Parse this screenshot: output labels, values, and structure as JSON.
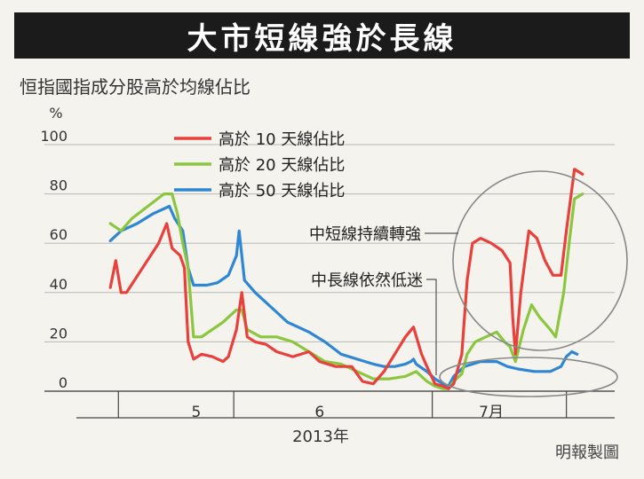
{
  "header": {
    "title": "大市短線強於長線",
    "subtitle": "恒指國指成分股高於均線佔比",
    "credit": "明報製圖"
  },
  "chart_data": {
    "type": "line",
    "ylabel": "%",
    "ylim": [
      0,
      100
    ],
    "yticks": [
      0,
      20,
      40,
      60,
      80,
      100
    ],
    "x_range": [
      0,
      100
    ],
    "x_ticks": [
      {
        "x": 22,
        "label": "5"
      },
      {
        "x": 45,
        "label": "6"
      },
      {
        "x": 77,
        "label": "7月"
      }
    ],
    "x_separators": [
      7.5,
      29,
      66,
      91
    ],
    "xlabel": "2013年",
    "grid": true,
    "legend_position": "top-center",
    "series": [
      {
        "name": "高於 10 天線佔比",
        "color": "#e8413c",
        "points": [
          [
            6,
            42
          ],
          [
            7,
            53
          ],
          [
            8,
            40
          ],
          [
            9,
            40
          ],
          [
            12,
            50
          ],
          [
            15,
            60
          ],
          [
            16.5,
            68
          ],
          [
            17.5,
            58
          ],
          [
            19,
            55
          ],
          [
            19.8,
            50
          ],
          [
            20.5,
            20
          ],
          [
            21.5,
            13
          ],
          [
            23,
            15
          ],
          [
            25,
            14
          ],
          [
            27,
            12
          ],
          [
            28,
            14
          ],
          [
            29.5,
            25
          ],
          [
            30.5,
            40
          ],
          [
            31.5,
            22
          ],
          [
            33,
            20
          ],
          [
            35,
            19
          ],
          [
            37,
            16
          ],
          [
            40,
            14
          ],
          [
            43,
            16
          ],
          [
            45,
            12
          ],
          [
            48,
            10
          ],
          [
            51,
            10
          ],
          [
            53,
            4
          ],
          [
            55,
            3
          ],
          [
            57,
            8
          ],
          [
            59,
            15
          ],
          [
            61,
            22
          ],
          [
            62.5,
            26
          ],
          [
            64,
            15
          ],
          [
            65,
            10
          ],
          [
            66.5,
            3
          ],
          [
            68,
            2
          ],
          [
            69,
            1
          ],
          [
            70,
            3
          ],
          [
            71.5,
            15
          ],
          [
            72.5,
            45
          ],
          [
            73.5,
            60
          ],
          [
            75,
            62
          ],
          [
            77,
            60
          ],
          [
            79,
            57
          ],
          [
            80.5,
            52
          ],
          [
            81,
            30
          ],
          [
            81.5,
            15
          ],
          [
            82.5,
            40
          ],
          [
            84,
            65
          ],
          [
            85.5,
            62
          ],
          [
            87,
            53
          ],
          [
            88.5,
            47
          ],
          [
            90,
            47
          ],
          [
            91,
            65
          ],
          [
            92.5,
            90
          ],
          [
            94,
            88
          ]
        ]
      },
      {
        "name": "高於 20 天線佔比",
        "color": "#8cc63f",
        "points": [
          [
            6,
            68
          ],
          [
            8,
            65
          ],
          [
            10,
            70
          ],
          [
            13,
            75
          ],
          [
            16,
            80
          ],
          [
            17.5,
            80
          ],
          [
            18.5,
            72
          ],
          [
            19.5,
            60
          ],
          [
            20.5,
            50
          ],
          [
            21.5,
            22
          ],
          [
            23,
            22
          ],
          [
            25,
            25
          ],
          [
            27,
            28
          ],
          [
            28,
            30
          ],
          [
            29.5,
            33
          ],
          [
            30.5,
            33
          ],
          [
            31.5,
            25
          ],
          [
            34,
            22
          ],
          [
            37,
            22
          ],
          [
            40,
            20
          ],
          [
            43,
            16
          ],
          [
            46,
            12
          ],
          [
            49,
            11
          ],
          [
            52,
            8
          ],
          [
            55,
            5
          ],
          [
            58,
            5
          ],
          [
            61,
            6
          ],
          [
            63,
            8
          ],
          [
            65,
            4
          ],
          [
            66.5,
            2
          ],
          [
            68,
            1
          ],
          [
            69,
            1
          ],
          [
            70,
            4
          ],
          [
            71.5,
            7
          ],
          [
            72.5,
            15
          ],
          [
            74,
            20
          ],
          [
            76,
            22
          ],
          [
            78,
            24
          ],
          [
            79.5,
            20
          ],
          [
            80.5,
            18
          ],
          [
            81.5,
            12
          ],
          [
            83,
            25
          ],
          [
            84.5,
            35
          ],
          [
            86,
            30
          ],
          [
            88,
            25
          ],
          [
            89,
            22
          ],
          [
            90.5,
            40
          ],
          [
            91.5,
            60
          ],
          [
            92.5,
            78
          ],
          [
            94,
            80
          ]
        ]
      },
      {
        "name": "高於 50 天線佔比",
        "color": "#2f86d2",
        "points": [
          [
            6,
            61
          ],
          [
            8,
            65
          ],
          [
            11,
            68
          ],
          [
            14,
            72
          ],
          [
            17,
            75
          ],
          [
            18,
            70
          ],
          [
            19.5,
            65
          ],
          [
            20.5,
            50
          ],
          [
            21.5,
            43
          ],
          [
            24,
            43
          ],
          [
            26,
            44
          ],
          [
            28,
            47
          ],
          [
            29.5,
            55
          ],
          [
            30,
            65
          ],
          [
            30.5,
            55
          ],
          [
            31,
            45
          ],
          [
            33,
            40
          ],
          [
            35,
            36
          ],
          [
            37,
            32
          ],
          [
            39,
            28
          ],
          [
            41,
            26
          ],
          [
            43,
            24
          ],
          [
            46,
            20
          ],
          [
            49,
            15
          ],
          [
            52,
            13
          ],
          [
            55,
            11
          ],
          [
            57,
            10
          ],
          [
            59,
            10
          ],
          [
            61,
            11
          ],
          [
            62,
            12
          ],
          [
            62.5,
            13
          ],
          [
            63,
            11
          ],
          [
            65,
            8
          ],
          [
            66.5,
            5
          ],
          [
            68,
            3
          ],
          [
            69,
            2
          ],
          [
            70,
            6
          ],
          [
            72,
            10
          ],
          [
            75,
            12
          ],
          [
            78,
            12
          ],
          [
            80,
            10
          ],
          [
            82,
            9
          ],
          [
            85,
            8
          ],
          [
            88,
            8
          ],
          [
            90,
            10
          ],
          [
            91,
            14
          ],
          [
            92,
            16
          ],
          [
            93,
            15
          ]
        ]
      }
    ],
    "annotations": [
      {
        "text": "中短線持續轉強"
      },
      {
        "text": "中長線依然低迷"
      }
    ]
  }
}
